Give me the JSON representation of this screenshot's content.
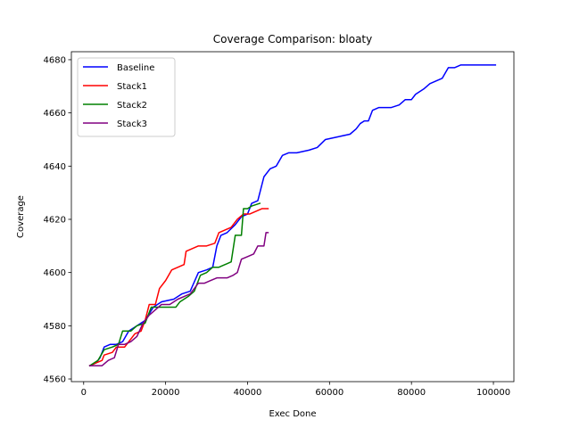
{
  "chart_data": {
    "type": "line",
    "title": "Coverage Comparison: bloaty",
    "xlabel": "Exec Done",
    "ylabel": "Coverage",
    "xlim": [
      -3000,
      105000
    ],
    "ylim": [
      4559,
      4683
    ],
    "xticks": [
      0,
      20000,
      40000,
      60000,
      80000,
      100000
    ],
    "yticks": [
      4560,
      4580,
      4600,
      4620,
      4640,
      4660,
      4680
    ],
    "grid": false,
    "legend_position": "top-left",
    "series": [
      {
        "name": "Baseline",
        "color": "#0000ff",
        "points": [
          [
            1500,
            4565
          ],
          [
            3000,
            4566
          ],
          [
            4000,
            4568
          ],
          [
            5000,
            4572
          ],
          [
            6500,
            4573
          ],
          [
            8000,
            4573
          ],
          [
            9500,
            4574
          ],
          [
            11000,
            4578
          ],
          [
            13000,
            4580
          ],
          [
            15000,
            4582
          ],
          [
            17000,
            4587
          ],
          [
            19000,
            4589
          ],
          [
            22000,
            4590
          ],
          [
            24000,
            4592
          ],
          [
            26000,
            4593
          ],
          [
            28000,
            4600
          ],
          [
            30000,
            4601
          ],
          [
            31500,
            4602
          ],
          [
            32500,
            4610
          ],
          [
            33500,
            4614
          ],
          [
            35000,
            4615
          ],
          [
            37000,
            4618
          ],
          [
            38500,
            4621
          ],
          [
            40000,
            4622
          ],
          [
            41000,
            4626
          ],
          [
            42500,
            4627
          ],
          [
            44000,
            4636
          ],
          [
            45500,
            4639
          ],
          [
            47000,
            4640
          ],
          [
            48500,
            4644
          ],
          [
            50000,
            4645
          ],
          [
            52000,
            4645
          ],
          [
            55000,
            4646
          ],
          [
            57000,
            4647
          ],
          [
            59000,
            4650
          ],
          [
            62000,
            4651
          ],
          [
            65000,
            4652
          ],
          [
            66500,
            4654
          ],
          [
            67500,
            4656
          ],
          [
            68500,
            4657
          ],
          [
            69500,
            4657
          ],
          [
            70500,
            4661
          ],
          [
            72000,
            4662
          ],
          [
            75000,
            4662
          ],
          [
            77000,
            4663
          ],
          [
            78500,
            4665
          ],
          [
            80000,
            4665
          ],
          [
            81000,
            4667
          ],
          [
            83000,
            4669
          ],
          [
            84500,
            4671
          ],
          [
            86000,
            4672
          ],
          [
            87500,
            4673
          ],
          [
            89000,
            4677
          ],
          [
            90500,
            4677
          ],
          [
            92000,
            4678
          ],
          [
            95000,
            4678
          ],
          [
            97000,
            4678
          ],
          [
            100500,
            4678
          ]
        ]
      },
      {
        "name": "Stack1",
        "color": "#ff0000",
        "points": [
          [
            1500,
            4565
          ],
          [
            3000,
            4566
          ],
          [
            4500,
            4567
          ],
          [
            5000,
            4569
          ],
          [
            7000,
            4570
          ],
          [
            8000,
            4572
          ],
          [
            10000,
            4572
          ],
          [
            11000,
            4574
          ],
          [
            12500,
            4577
          ],
          [
            14000,
            4578
          ],
          [
            15000,
            4582
          ],
          [
            16000,
            4588
          ],
          [
            17500,
            4588
          ],
          [
            18500,
            4594
          ],
          [
            20000,
            4597
          ],
          [
            21500,
            4601
          ],
          [
            23000,
            4602
          ],
          [
            24500,
            4603
          ],
          [
            25000,
            4608
          ],
          [
            26500,
            4609
          ],
          [
            28000,
            4610
          ],
          [
            30000,
            4610
          ],
          [
            32000,
            4611
          ],
          [
            33000,
            4615
          ],
          [
            34500,
            4616
          ],
          [
            36000,
            4617
          ],
          [
            37500,
            4620
          ],
          [
            39000,
            4622
          ],
          [
            40500,
            4622
          ],
          [
            42000,
            4623
          ],
          [
            43500,
            4624
          ],
          [
            45000,
            4624
          ]
        ]
      },
      {
        "name": "Stack2",
        "color": "#008000",
        "points": [
          [
            1500,
            4565
          ],
          [
            2500,
            4566
          ],
          [
            3500,
            4567
          ],
          [
            5000,
            4571
          ],
          [
            7000,
            4572
          ],
          [
            8500,
            4573
          ],
          [
            9500,
            4578
          ],
          [
            11500,
            4578
          ],
          [
            13000,
            4580
          ],
          [
            15000,
            4581
          ],
          [
            16500,
            4587
          ],
          [
            19000,
            4587
          ],
          [
            22500,
            4587
          ],
          [
            23500,
            4589
          ],
          [
            25500,
            4591
          ],
          [
            27000,
            4593
          ],
          [
            28500,
            4599
          ],
          [
            30000,
            4600
          ],
          [
            31500,
            4602
          ],
          [
            33000,
            4602
          ],
          [
            34500,
            4603
          ],
          [
            36000,
            4604
          ],
          [
            37000,
            4614
          ],
          [
            38500,
            4614
          ],
          [
            39000,
            4624
          ],
          [
            40000,
            4624
          ],
          [
            41000,
            4625
          ],
          [
            43000,
            4626
          ]
        ]
      },
      {
        "name": "Stack3",
        "color": "#800080",
        "points": [
          [
            1500,
            4565
          ],
          [
            3000,
            4565
          ],
          [
            4500,
            4565
          ],
          [
            6000,
            4567
          ],
          [
            7500,
            4568
          ],
          [
            8500,
            4573
          ],
          [
            10000,
            4573
          ],
          [
            11500,
            4574
          ],
          [
            13000,
            4576
          ],
          [
            14500,
            4581
          ],
          [
            16000,
            4584
          ],
          [
            17500,
            4586
          ],
          [
            19000,
            4588
          ],
          [
            21000,
            4588
          ],
          [
            23000,
            4590
          ],
          [
            24500,
            4591
          ],
          [
            26000,
            4592
          ],
          [
            27000,
            4594
          ],
          [
            28000,
            4596
          ],
          [
            29500,
            4596
          ],
          [
            31000,
            4597
          ],
          [
            32500,
            4598
          ],
          [
            35000,
            4598
          ],
          [
            36500,
            4599
          ],
          [
            37500,
            4600
          ],
          [
            38500,
            4605
          ],
          [
            40000,
            4606
          ],
          [
            41500,
            4607
          ],
          [
            42500,
            4610
          ],
          [
            44000,
            4610
          ],
          [
            44500,
            4615
          ],
          [
            45000,
            4615
          ]
        ]
      }
    ]
  }
}
